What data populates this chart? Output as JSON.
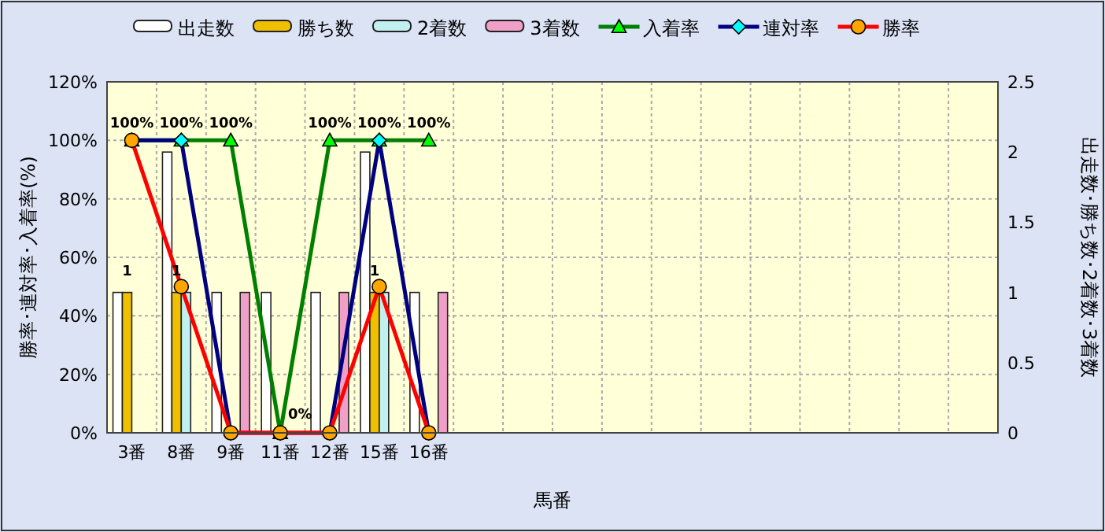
{
  "chart_data": {
    "type": "bar",
    "xlabel": "馬番",
    "ylabel": "勝率･連対率･入着率(%)",
    "y2label": "出走数･勝ち数･2着数･3着数",
    "categories": [
      "3番",
      "8番",
      "9番",
      "11番",
      "12番",
      "15番",
      "16番",
      null,
      null,
      null,
      null,
      null,
      null,
      null,
      null,
      null,
      null,
      null
    ],
    "series": [
      {
        "name": "出走数",
        "axis": "y2",
        "color": "#ffffff",
        "values": [
          1,
          2,
          1,
          1,
          1,
          2,
          1,
          null,
          null,
          null,
          null,
          null,
          null,
          null,
          null,
          null,
          null,
          null
        ]
      },
      {
        "name": "勝ち数",
        "axis": "y2",
        "color": "#f0c000",
        "values": [
          1,
          1,
          0,
          0,
          0,
          1,
          0,
          null,
          null,
          null,
          null,
          null,
          null,
          null,
          null,
          null,
          null,
          null
        ],
        "value_labels": [
          "1",
          "1",
          null,
          null,
          null,
          "1",
          null,
          null,
          null,
          null,
          null,
          null,
          null,
          null,
          null,
          null,
          null,
          null
        ]
      },
      {
        "name": "2着数",
        "axis": "y2",
        "color": "#c0f0f0",
        "values": [
          0,
          1,
          0,
          0,
          0,
          1,
          0,
          null,
          null,
          null,
          null,
          null,
          null,
          null,
          null,
          null,
          null,
          null
        ]
      },
      {
        "name": "3着数",
        "axis": "y2",
        "color": "#f0a0c8",
        "values": [
          0,
          0,
          1,
          0,
          1,
          0,
          1,
          null,
          null,
          null,
          null,
          null,
          null,
          null,
          null,
          null,
          null,
          null
        ]
      },
      {
        "name": "入着率",
        "type": "line",
        "color": "#008000",
        "colors": [
          "#00ff00",
          "#00ff00",
          "#00ff00",
          "#00ff00",
          "#00ff00",
          "#00ff00",
          "#00ff00",
          null,
          null,
          null,
          null,
          null,
          null,
          null,
          null,
          null,
          null,
          null
        ],
        "marker": "triangle",
        "values": [
          100,
          100,
          100,
          0,
          100,
          100,
          100,
          null,
          null,
          null,
          null,
          null,
          null,
          null,
          null,
          null,
          null,
          null
        ],
        "value_labels": [
          "100%",
          "100%",
          "100%",
          "0%",
          "100%",
          "100%",
          "100%",
          null,
          null,
          null,
          null,
          null,
          null,
          null,
          null,
          null,
          null,
          null
        ]
      },
      {
        "name": "連対率",
        "type": "line",
        "color": "#000080",
        "colors": [
          "#00ffff",
          "#00ffff",
          "#00ffff",
          "#00ffff",
          "#00ffff",
          "#00ffff",
          "#00ffff",
          null,
          null,
          null,
          null,
          null,
          null,
          null,
          null,
          null,
          null,
          null
        ],
        "marker": "diamond",
        "values": [
          100,
          100,
          0,
          0,
          0,
          100,
          0,
          null,
          null,
          null,
          null,
          null,
          null,
          null,
          null,
          null,
          null,
          null
        ]
      },
      {
        "name": "勝率",
        "type": "line",
        "color": "#ff0000",
        "colors": [
          "#ffa500",
          "#ffa500",
          "#ffa500",
          "#ffa500",
          "#ffa500",
          "#ffa500",
          "#ffa500",
          null,
          null,
          null,
          null,
          null,
          null,
          null,
          null,
          null,
          null,
          null
        ],
        "marker": "circle",
        "values": [
          100,
          50,
          0,
          0,
          0,
          50,
          0,
          null,
          null,
          null,
          null,
          null,
          null,
          null,
          null,
          null,
          null,
          null
        ]
      }
    ],
    "ylim": [
      0,
      120
    ],
    "yticks": [
      {
        "value": 0,
        "label": "0%"
      },
      {
        "value": 20,
        "label": "20%"
      },
      {
        "value": 40,
        "label": "40%"
      },
      {
        "value": 60,
        "label": "60%"
      },
      {
        "value": 80,
        "label": "80%"
      },
      {
        "value": 100,
        "label": "100%"
      },
      {
        "value": 120,
        "label": "120%"
      }
    ],
    "y2lim": [
      0,
      2.5
    ],
    "y2ticks": [
      0,
      0.5,
      1,
      1.5,
      2,
      2.5
    ],
    "grid": true,
    "legend": "top"
  }
}
